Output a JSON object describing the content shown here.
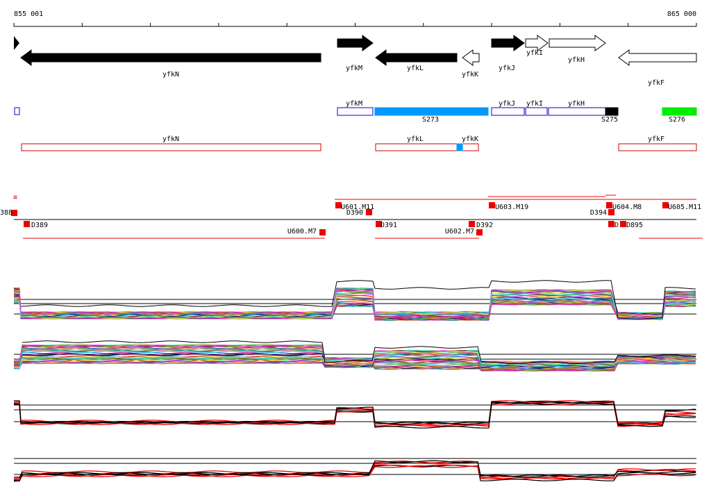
{
  "ruler": {
    "start": "855 001",
    "end": "865 000"
  },
  "genes": [
    "yfkN",
    "yfkM",
    "yfkL",
    "yfkK",
    "yfkJ",
    "yfkI",
    "yfkH",
    "yfkF"
  ],
  "segments": [
    "yfkM",
    "S273",
    "yfkJ",
    "yfkI",
    "yfkH",
    "S275",
    "S276"
  ],
  "transcripts": [
    "yfkN",
    "yfkL",
    "yfkK",
    "yfkF"
  ],
  "probes": [
    "388",
    "D389",
    "U600.M7",
    "U601.M11",
    "D390",
    "D391",
    "U602.M7",
    "D392",
    "U603.M19",
    "D394",
    "U604.M8",
    "D",
    "D895",
    "U605.M11"
  ]
}
